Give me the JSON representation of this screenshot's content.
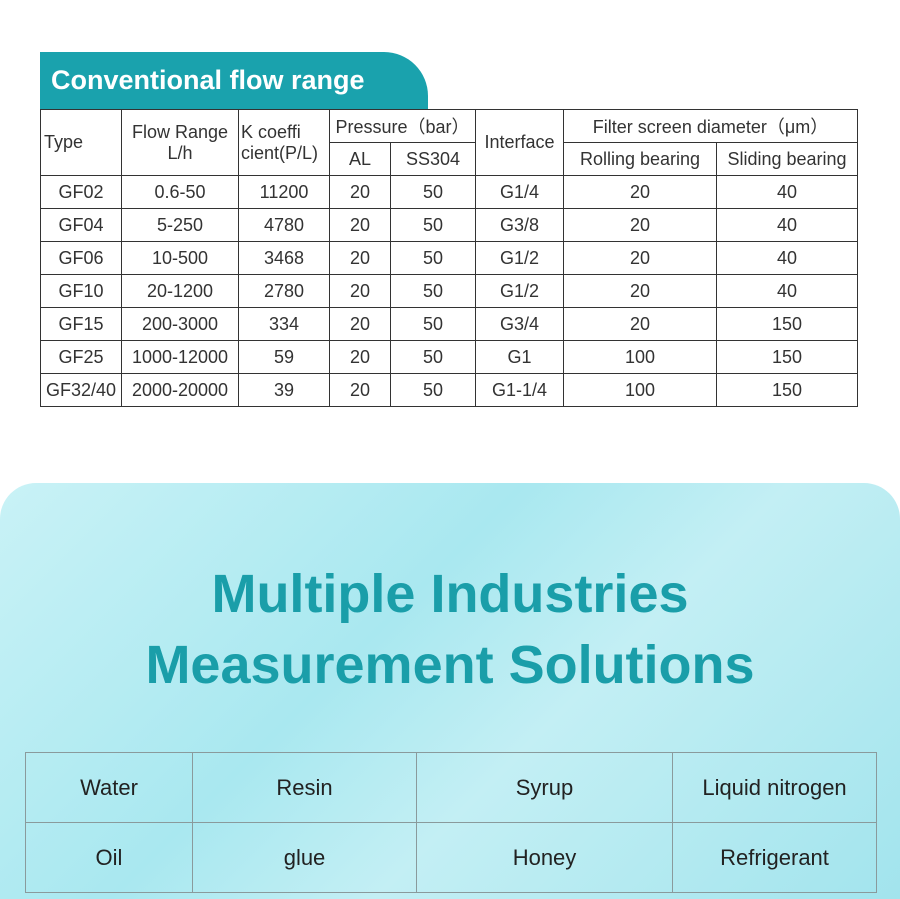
{
  "section_title": "Conventional flow range",
  "table": {
    "header": {
      "type": "Type",
      "flow_range": [
        "Flow Range",
        "L/h"
      ],
      "k_coefficient": [
        "K coeffi",
        "cient(P/L)"
      ],
      "pressure": "Pressure（bar）",
      "al": "AL",
      "ss304": "SS304",
      "interface": "Interface",
      "filter": "Filter screen diameter（μm）",
      "rolling": "Rolling bearing",
      "sliding": "Sliding bearing"
    },
    "rows": [
      [
        "GF02",
        "0.6-50",
        "11200",
        "20",
        "50",
        "G1/4",
        "20",
        "40"
      ],
      [
        "GF04",
        "5-250",
        "4780",
        "20",
        "50",
        "G3/8",
        "20",
        "40"
      ],
      [
        "GF06",
        "10-500",
        "3468",
        "20",
        "50",
        "G1/2",
        "20",
        "40"
      ],
      [
        "GF10",
        "20-1200",
        "2780",
        "20",
        "50",
        "G1/2",
        "20",
        "40"
      ],
      [
        "GF15",
        "200-3000",
        "334",
        "20",
        "50",
        "G3/4",
        "20",
        "150"
      ],
      [
        "GF25",
        "1000-12000",
        "59",
        "20",
        "50",
        "G1",
        "100",
        "150"
      ],
      [
        "GF32/40",
        "2000-20000",
        "39",
        "20",
        "50",
        "G1-1/4",
        "100",
        "150"
      ]
    ]
  },
  "banner": {
    "title": [
      "Multiple Industries",
      "Measurement Solutions"
    ],
    "industries": [
      [
        "Water",
        "Resin",
        "Syrup",
        "Liquid nitrogen"
      ],
      [
        "Oil",
        "glue",
        "Honey",
        "Refrigerant"
      ]
    ]
  }
}
